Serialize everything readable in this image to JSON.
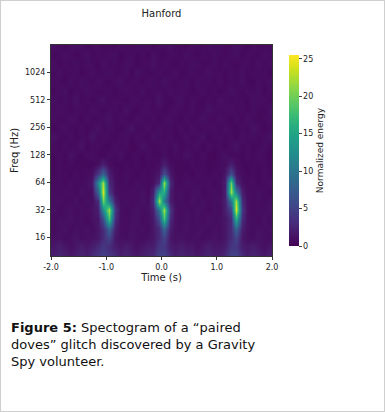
{
  "chart_data": {
    "type": "heatmap",
    "title": "Hanford",
    "x_label": "Time (s)",
    "y_label": "Freq (Hz)",
    "log": "y",
    "color": "Viridis",
    "xlim": [
      -2,
      2
    ],
    "xticks": [
      {
        "value": -2,
        "label": "-2.0"
      },
      {
        "value": -1,
        "label": "-1.0"
      },
      {
        "value": 0,
        "label": "0.0"
      },
      {
        "value": 1,
        "label": "1.0"
      },
      {
        "value": 2,
        "label": "2.0"
      }
    ],
    "ylim": [
      10,
      2048
    ],
    "yticks": [
      16,
      32,
      64,
      128,
      256,
      512,
      1024
    ],
    "colorbar": {
      "label": "Normalized energy",
      "range": [
        0,
        25.5
      ],
      "ticks": [
        0,
        5,
        10,
        15,
        20,
        25
      ]
    },
    "x": [
      -1.95,
      -1.85,
      -1.75,
      -1.65,
      -1.55,
      -1.45,
      -1.35,
      -1.25,
      -1.15,
      -1.05,
      -0.95,
      -0.85,
      -0.75,
      -0.65,
      -0.55,
      -0.45,
      -0.35,
      -0.25,
      -0.15,
      -0.05,
      0.05,
      0.15,
      0.25,
      0.35,
      0.45,
      0.55,
      0.65,
      0.75,
      0.85,
      0.95,
      1.05,
      1.15,
      1.25,
      1.35,
      1.45,
      1.55,
      1.65,
      1.75,
      1.85,
      1.95
    ],
    "y": [
      10,
      12.6,
      15.9,
      20,
      25.2,
      31.7,
      40,
      50.4,
      63.5,
      80,
      101,
      127,
      160,
      202,
      254,
      320,
      403,
      508,
      640,
      806,
      1016,
      1280,
      1613,
      2032
    ],
    "z": [
      [
        2,
        2.5,
        2,
        1.5,
        2,
        2.5,
        2,
        3,
        4,
        5,
        4,
        3,
        2,
        2.5,
        2,
        1.5,
        2,
        2.5,
        3,
        5,
        5,
        3,
        2,
        2.5,
        2,
        2,
        1.5,
        2,
        2.5,
        2,
        2,
        3,
        5,
        5,
        3,
        2,
        2.5,
        2,
        1.5,
        2
      ],
      [
        1.5,
        2,
        1.5,
        1,
        1.5,
        2,
        1.5,
        2,
        3,
        4,
        3,
        2,
        1.5,
        2,
        1.5,
        1,
        1.5,
        2,
        2,
        4,
        4,
        2,
        1.5,
        2,
        1.5,
        1.5,
        1,
        1.5,
        2,
        1.5,
        1.5,
        2,
        4,
        4,
        2,
        1.5,
        2,
        1.5,
        1,
        1.5
      ],
      [
        1,
        1.2,
        0.8,
        1,
        1.3,
        0.9,
        1,
        1.1,
        1.5,
        3,
        5,
        1.5,
        1,
        0.9,
        1.2,
        1,
        0.8,
        1.1,
        1.5,
        3,
        5,
        1.5,
        1,
        1.2,
        0.9,
        1,
        1.1,
        0.8,
        1,
        1.2,
        0.9,
        1.5,
        3,
        5,
        1.5,
        1,
        0.9,
        1.2,
        1,
        0.8
      ],
      [
        0.8,
        1,
        1.2,
        0.7,
        1,
        0.9,
        1.1,
        0.8,
        1.5,
        3,
        8,
        2,
        1,
        0.8,
        1.1,
        0.9,
        1,
        0.7,
        1.5,
        3,
        8,
        2,
        1,
        0.9,
        1.2,
        0.8,
        1,
        1.1,
        0.7,
        1,
        0.9,
        1.5,
        3,
        8,
        2,
        1,
        0.8,
        1.1,
        0.9,
        1
      ],
      [
        0.7,
        1,
        0.9,
        1.2,
        0.8,
        1,
        0.6,
        1.1,
        1.5,
        6,
        18,
        3,
        1,
        0.8,
        1,
        1.2,
        0.7,
        0.9,
        1.5,
        6,
        18,
        3,
        1,
        0.8,
        1.1,
        0.9,
        1,
        0.7,
        1.2,
        0.9,
        1,
        1.5,
        3,
        16,
        3,
        1,
        0.9,
        0.7,
        1.1,
        0.8
      ],
      [
        1,
        0.6,
        0.9,
        1.1,
        0.7,
        1,
        0.8,
        1.2,
        2,
        12,
        22,
        4,
        1,
        0.7,
        0.9,
        1.1,
        0.8,
        1,
        2,
        10,
        22,
        4,
        1,
        0.8,
        1,
        0.7,
        1.1,
        0.9,
        0.6,
        1,
        0.8,
        2,
        5,
        24,
        4,
        1,
        0.7,
        1,
        0.9,
        1.1
      ],
      [
        0.9,
        1,
        0.7,
        0.8,
        1.1,
        0.6,
        1,
        0.9,
        3,
        20,
        10,
        2,
        0.8,
        1,
        0.7,
        0.9,
        1.2,
        0.8,
        3,
        22,
        10,
        2,
        0.9,
        1,
        0.6,
        1.1,
        0.8,
        1,
        0.7,
        0.9,
        1,
        2,
        10,
        22,
        3,
        1,
        0.8,
        0.9,
        0.7,
        1
      ],
      [
        0.8,
        0.7,
        1,
        0.9,
        0.6,
        1.1,
        0.8,
        1,
        8,
        24,
        4,
        1,
        0.9,
        0.7,
        1,
        0.8,
        1.1,
        0.6,
        2,
        14,
        16,
        2,
        0.8,
        1,
        0.7,
        0.9,
        1.1,
        0.6,
        0.8,
        1,
        0.7,
        2,
        22,
        10,
        2,
        0.9,
        0.7,
        1,
        0.8,
        0.6
      ],
      [
        0.7,
        0.9,
        0.6,
        1,
        0.8,
        0.7,
        1,
        1.5,
        12,
        22,
        3,
        1,
        0.7,
        0.9,
        0.6,
        1,
        0.8,
        0.7,
        1,
        3,
        22,
        3,
        0.8,
        0.6,
        1,
        0.9,
        0.7,
        0.8,
        1,
        0.6,
        0.9,
        2,
        20,
        3,
        1,
        0.7,
        0.9,
        0.6,
        0.8,
        1
      ],
      [
        0.6,
        0.8,
        0.7,
        0.5,
        0.9,
        0.6,
        0.8,
        1,
        4,
        8,
        2,
        0.8,
        0.6,
        0.9,
        0.7,
        0.5,
        0.8,
        0.6,
        0.9,
        1.5,
        6,
        1.5,
        0.7,
        0.6,
        0.8,
        0.5,
        0.9,
        0.7,
        0.6,
        0.8,
        0.7,
        1.5,
        6,
        1.5,
        0.8,
        0.6,
        0.7,
        0.5,
        0.9,
        0.6
      ],
      [
        0.5,
        0.7,
        0.6,
        0.8,
        0.5,
        0.7,
        0.6,
        0.5,
        0.9,
        2,
        0.8,
        0.6,
        0.5,
        0.7,
        0.6,
        0.8,
        0.5,
        0.7,
        0.6,
        0.9,
        2,
        0.9,
        0.6,
        0.7,
        0.5,
        0.8,
        0.6,
        0.7,
        0.5,
        0.6,
        0.8,
        0.9,
        2,
        0.9,
        0.6,
        0.5,
        0.7,
        0.6,
        0.8,
        0.5
      ],
      [
        0.6,
        0.9,
        0.5,
        1.2,
        0.7,
        0.4,
        0.8,
        1.0,
        0.6,
        0.5,
        0.9,
        0.7,
        1.1,
        0.5,
        0.6,
        0.8,
        0.4,
        0.9,
        0.7,
        0.6,
        1.0,
        0.5,
        0.8,
        0.6,
        1.2,
        0.7,
        0.5,
        0.9,
        0.6,
        0.4,
        0.8,
        1.1,
        0.6,
        0.7,
        0.5,
        0.9,
        0.6,
        1.0,
        0.7,
        0.5
      ],
      [
        0.8,
        0.5,
        1.0,
        0.6,
        0.9,
        1.3,
        0.5,
        0.7,
        0.8,
        0.6,
        0.5,
        1.0,
        0.7,
        0.9,
        0.4,
        0.6,
        1.2,
        0.8,
        0.5,
        0.7,
        0.9,
        0.6,
        1.1,
        0.5,
        0.7,
        0.8,
        1.0,
        0.4,
        0.9,
        0.6,
        0.7,
        0.5,
        0.9,
        1.2,
        0.6,
        0.8,
        0.5,
        0.7,
        1.0,
        0.6
      ],
      [
        1.1,
        0.7,
        0.6,
        0.9,
        0.5,
        0.8,
        0.7,
        1.4,
        0.6,
        0.9,
        0.7,
        0.5,
        0.8,
        1.0,
        0.6,
        0.9,
        0.7,
        0.5,
        1.1,
        0.8,
        0.6,
        0.9,
        0.5,
        0.7,
        1.0,
        0.6,
        0.8,
        1.2,
        0.5,
        0.7,
        0.9,
        0.6,
        0.8,
        0.5,
        1.0,
        0.7,
        0.9,
        0.6,
        0.8,
        1.1
      ],
      [
        0.5,
        0.8,
        1.0,
        0.7,
        0.6,
        0.9,
        0.5,
        0.8,
        1.2,
        0.6,
        0.9,
        0.7,
        0.5,
        0.8,
        1.3,
        0.6,
        0.7,
        0.9,
        0.5,
        1.0,
        0.7,
        0.8,
        0.6,
        0.9,
        0.5,
        1.1,
        0.7,
        0.6,
        0.8,
        0.9,
        0.6,
        1.0,
        0.7,
        0.5,
        0.8,
        0.6,
        1.2,
        0.9,
        0.5,
        0.7
      ],
      [
        0.9,
        0.6,
        0.7,
        1.1,
        0.8,
        0.5,
        1.0,
        0.6,
        0.7,
        0.9,
        1.2,
        0.6,
        0.9,
        0.7,
        0.5,
        1.0,
        0.8,
        0.6,
        0.9,
        0.5,
        0.8,
        1.0,
        0.7,
        0.5,
        0.9,
        0.6,
        0.8,
        1.1,
        0.7,
        0.6,
        1.0,
        0.7,
        0.5,
        0.9,
        0.6,
        1.1,
        0.8,
        0.5,
        0.7,
        0.9
      ],
      [
        0.7,
        1.0,
        0.8,
        0.5,
        0.9,
        0.7,
        0.6,
        1.1,
        0.8,
        0.6,
        0.8,
        0.9,
        0.6,
        1.2,
        0.7,
        0.5,
        0.9,
        1.0,
        0.6,
        0.8,
        0.5,
        0.7,
        0.9,
        0.8,
        0.6,
        1.0,
        0.5,
        0.7,
        1.2,
        0.8,
        0.7,
        0.9,
        1.0,
        0.6,
        0.8,
        0.5,
        0.9,
        0.7,
        0.6,
        1.0
      ],
      [
        1.0,
        0.6,
        0.9,
        0.7,
        1.2,
        0.6,
        0.8,
        0.5,
        0.9,
        1.1,
        0.6,
        0.8,
        0.7,
        0.5,
        1.0,
        0.9,
        0.6,
        0.8,
        0.7,
        1.3,
        0.7,
        0.5,
        0.8,
        1.0,
        0.6,
        0.9,
        0.7,
        0.5,
        0.8,
        0.6,
        1.1,
        0.8,
        0.6,
        0.9,
        0.7,
        0.5,
        1.0,
        0.8,
        0.9,
        0.6
      ],
      [
        0.6,
        0.9,
        1.1,
        0.5,
        0.8,
        0.7,
        1.0,
        0.9,
        0.6,
        0.7,
        0.9,
        0.5,
        0.8,
        1.0,
        0.7,
        0.6,
        1.1,
        0.5,
        0.8,
        0.9,
        0.6,
        1.0,
        0.7,
        0.9,
        0.8,
        0.5,
        0.7,
        1.0,
        0.6,
        0.8,
        0.5,
        0.7,
        1.1,
        0.8,
        0.6,
        0.9,
        0.7,
        1.0,
        0.5,
        0.8
      ],
      [
        0.8,
        0.7,
        0.5,
        1.0,
        0.6,
        1.1,
        0.8,
        0.6,
        1.0,
        0.7,
        0.5,
        0.9,
        1.1,
        0.6,
        0.8,
        0.7,
        0.5,
        1.0,
        0.9,
        0.6,
        1.2,
        0.7,
        0.6,
        0.8,
        0.9,
        0.5,
        1.0,
        0.7,
        0.8,
        0.6,
        0.9,
        0.6,
        0.8,
        0.7,
        1.1,
        0.6,
        0.5,
        0.9,
        0.7,
        1.0
      ],
      [
        0.7,
        1.1,
        0.6,
        0.8,
        0.9,
        0.5,
        0.7,
        1.0,
        0.6,
        0.8,
        1.0,
        0.6,
        0.7,
        0.9,
        0.5,
        1.2,
        0.8,
        0.6,
        0.7,
        0.9,
        0.6,
        0.8,
        1.0,
        0.5,
        0.7,
        0.9,
        0.6,
        0.8,
        1.1,
        0.7,
        0.8,
        0.5,
        0.9,
        0.7,
        1.0,
        0.6,
        0.8,
        0.7,
        0.9,
        0.5
      ],
      [
        0.9,
        0.5,
        0.8,
        0.7,
        1.0,
        0.6,
        0.9,
        0.8,
        0.5,
        1.1,
        0.7,
        0.8,
        0.6,
        1.0,
        0.9,
        0.5,
        0.7,
        0.8,
        1.2,
        0.6,
        0.9,
        0.6,
        0.5,
        0.8,
        0.7,
        1.0,
        0.9,
        0.6,
        0.7,
        0.8,
        0.6,
        1.0,
        0.7,
        0.5,
        0.9,
        0.8,
        0.6,
        1.1,
        0.7,
        0.9
      ],
      [
        0.6,
        0.8,
        1.0,
        0.9,
        0.5,
        0.7,
        1.1,
        0.6,
        0.8,
        0.7,
        0.8,
        1.0,
        0.5,
        0.7,
        0.9,
        0.6,
        0.8,
        0.5,
        1.0,
        0.7,
        0.5,
        0.9,
        0.8,
        0.6,
        1.1,
        0.7,
        0.5,
        0.9,
        0.6,
        1.0,
        0.7,
        0.6,
        0.9,
        1.0,
        0.5,
        0.8,
        0.7,
        0.6,
        1.0,
        0.8
      ],
      [
        1.0,
        0.7,
        0.6,
        0.8,
        1.1,
        0.9,
        0.5,
        0.7,
        0.8,
        0.6,
        0.7,
        0.5,
        0.9,
        0.8,
        0.6,
        1.0,
        0.7,
        0.9,
        0.5,
        0.8,
        0.8,
        1.1,
        0.6,
        0.7,
        0.5,
        0.9,
        0.8,
        0.6,
        1.0,
        0.7,
        0.9,
        0.6,
        0.7,
        1.0,
        0.8,
        0.5,
        0.9,
        0.7,
        0.6,
        0.8
      ]
    ]
  },
  "caption": {
    "label": "Figure 5:",
    "text": "Spectogram of a “paired doves” glitch discovered by a Gravity Spy volunteer."
  }
}
